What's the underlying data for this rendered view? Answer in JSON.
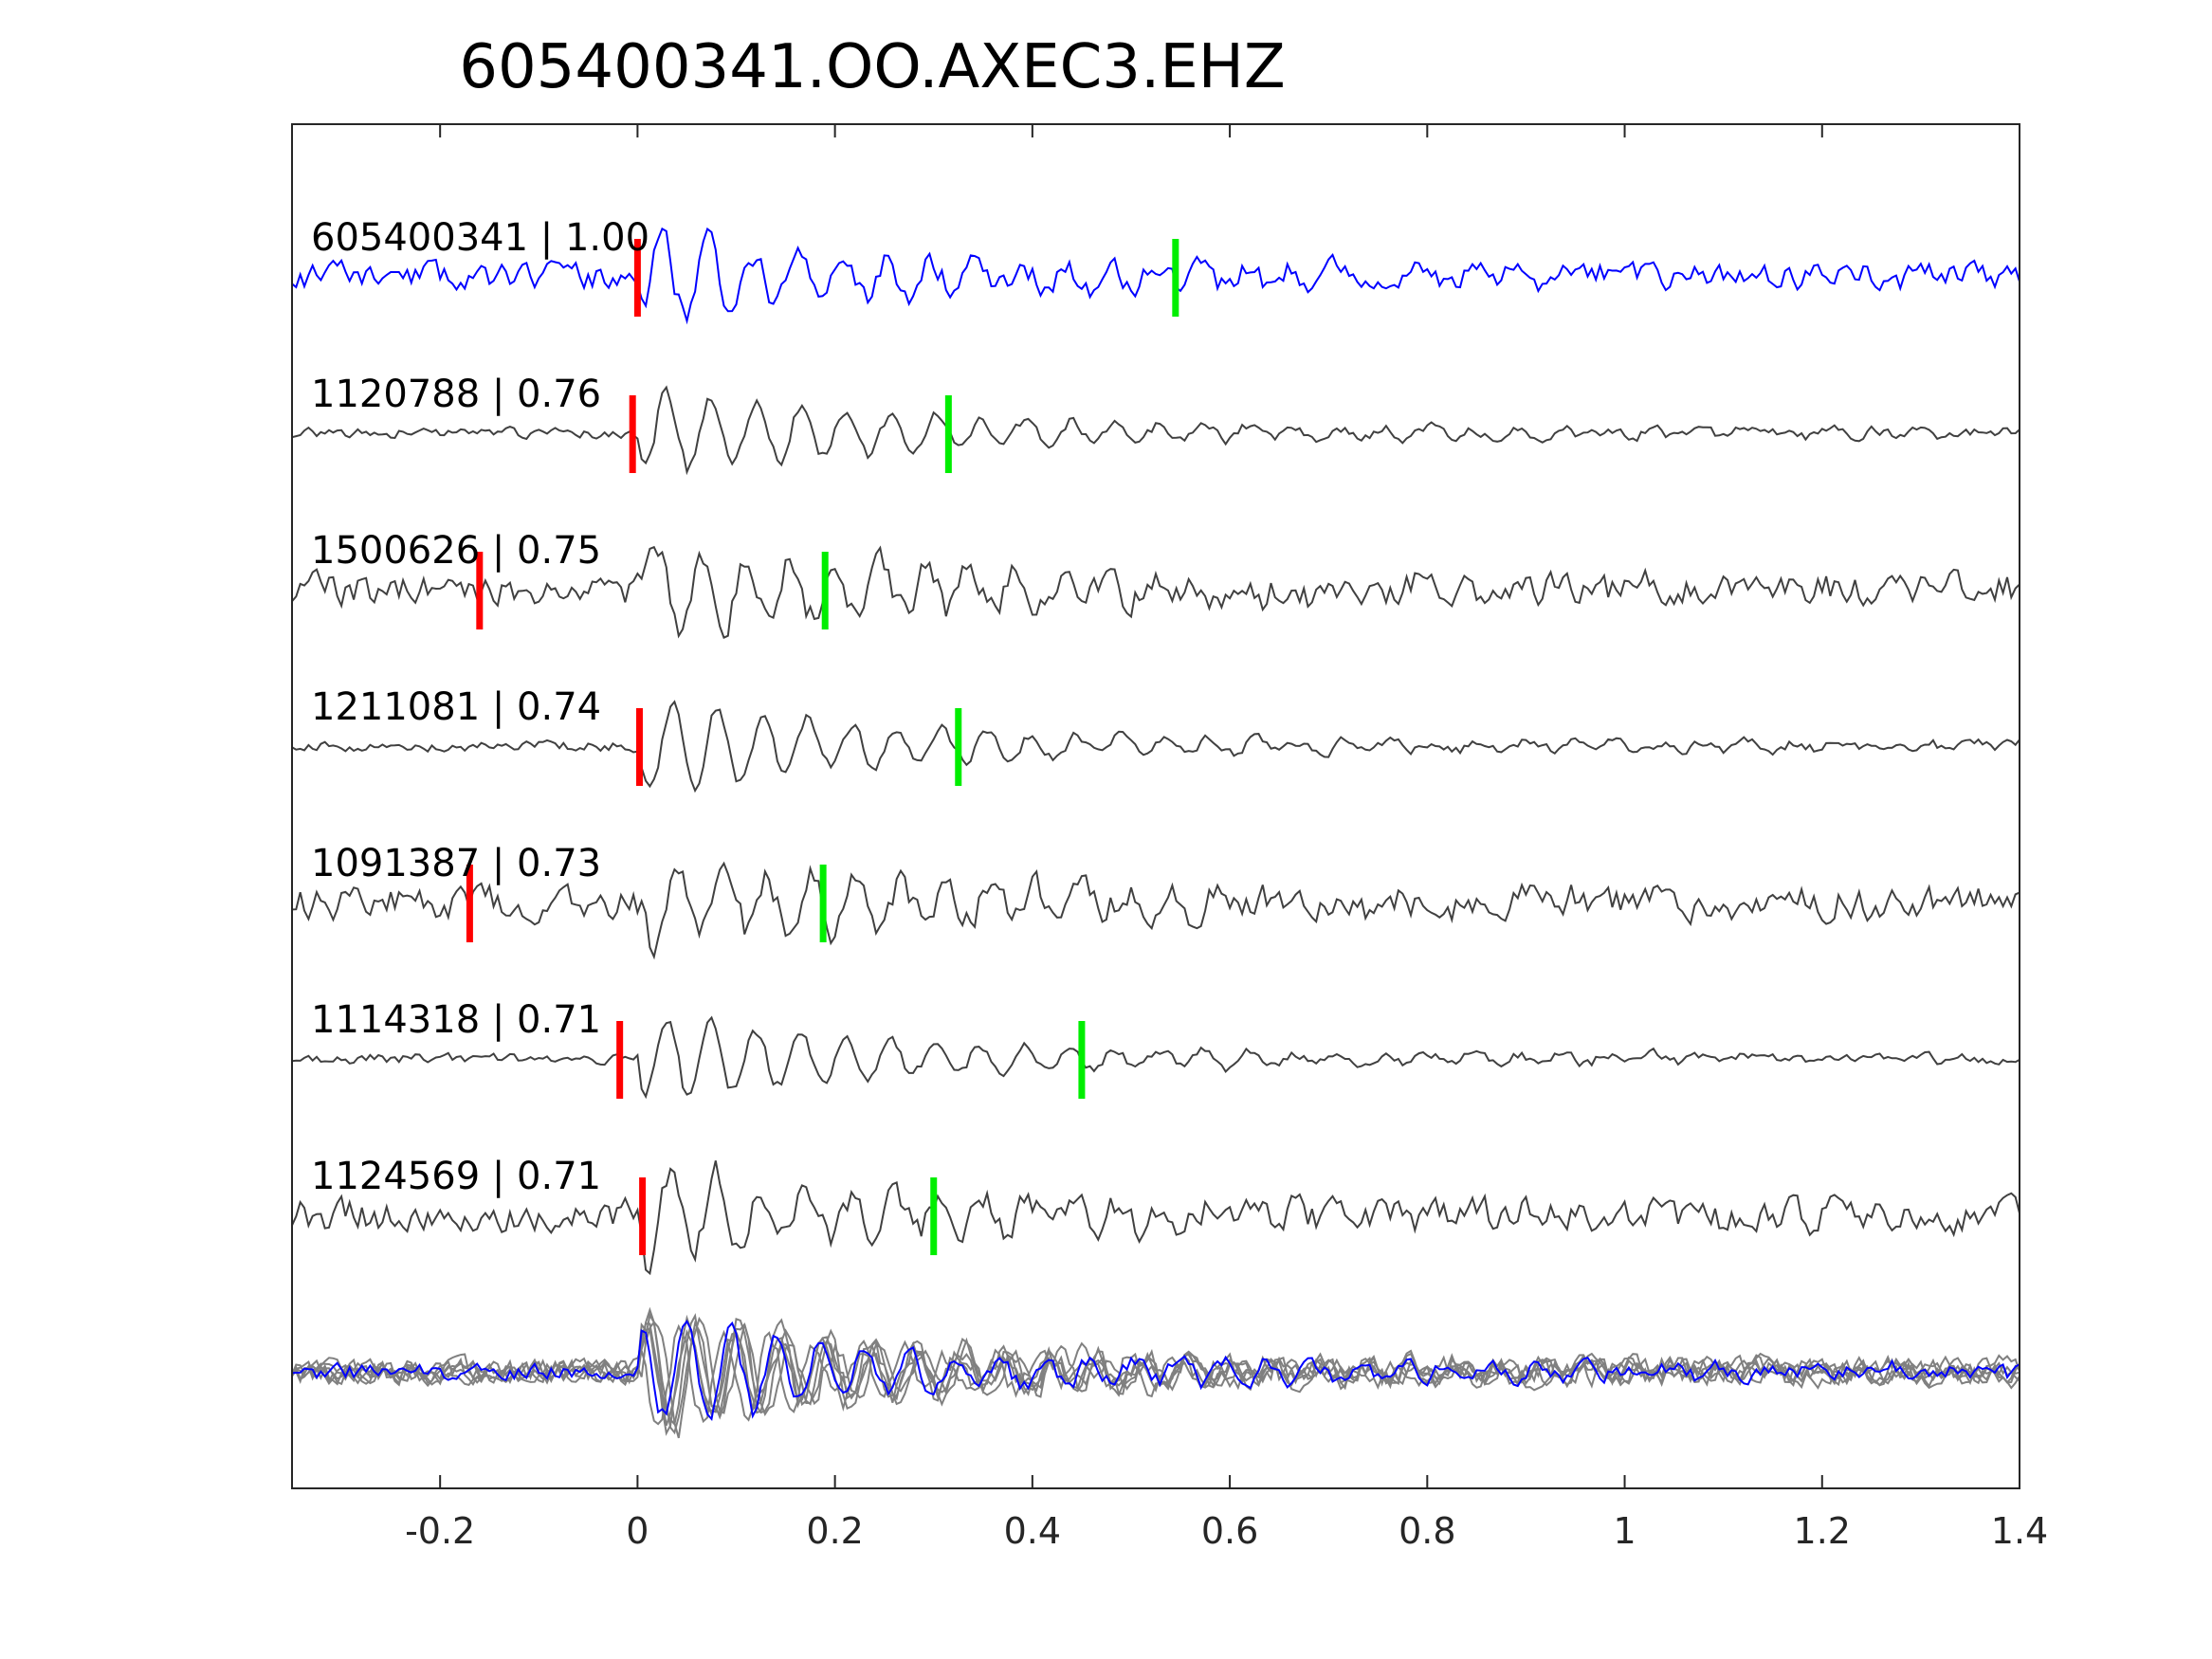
{
  "chart_data": {
    "type": "line",
    "title": "605400341.OO.AXEC3.EHZ",
    "xlabel": "",
    "ylabel": "",
    "xlim": [
      -0.35,
      1.4
    ],
    "xticks": [
      -0.2,
      0,
      0.2,
      0.4,
      0.6,
      0.8,
      1,
      1.2,
      1.4
    ],
    "xtick_labels": [
      "-0.2",
      "0",
      "0.2",
      "0.4",
      "0.6",
      "0.8",
      "1",
      "1.2",
      "1.4"
    ],
    "grid": false,
    "legend": "none",
    "colors": {
      "template": "#0000ff",
      "match": "#404040",
      "stack": "#808080",
      "p_pick": "#ff0000",
      "s_pick": "#00ee00",
      "axis": "#262626"
    },
    "series": [
      {
        "name": "605400341 | 1.00",
        "role": "template",
        "p_pick": 0.0,
        "s_pick": 0.545,
        "seed": 11
      },
      {
        "name": "1120788 | 0.76",
        "role": "match",
        "p_pick": -0.005,
        "s_pick": 0.315,
        "seed": 23
      },
      {
        "name": "1500626 | 0.75",
        "role": "match",
        "p_pick": -0.16,
        "s_pick": 0.19,
        "seed": 37
      },
      {
        "name": "1211081 | 0.74",
        "role": "match",
        "p_pick": 0.002,
        "s_pick": 0.325,
        "seed": 41
      },
      {
        "name": "1091387 | 0.73",
        "role": "match",
        "p_pick": -0.17,
        "s_pick": 0.188,
        "seed": 53
      },
      {
        "name": "1114318 | 0.71",
        "role": "match",
        "p_pick": -0.018,
        "s_pick": 0.45,
        "seed": 67
      },
      {
        "name": "1124569 | 0.71",
        "role": "match",
        "p_pick": 0.005,
        "s_pick": 0.3,
        "seed": 79
      }
    ]
  }
}
